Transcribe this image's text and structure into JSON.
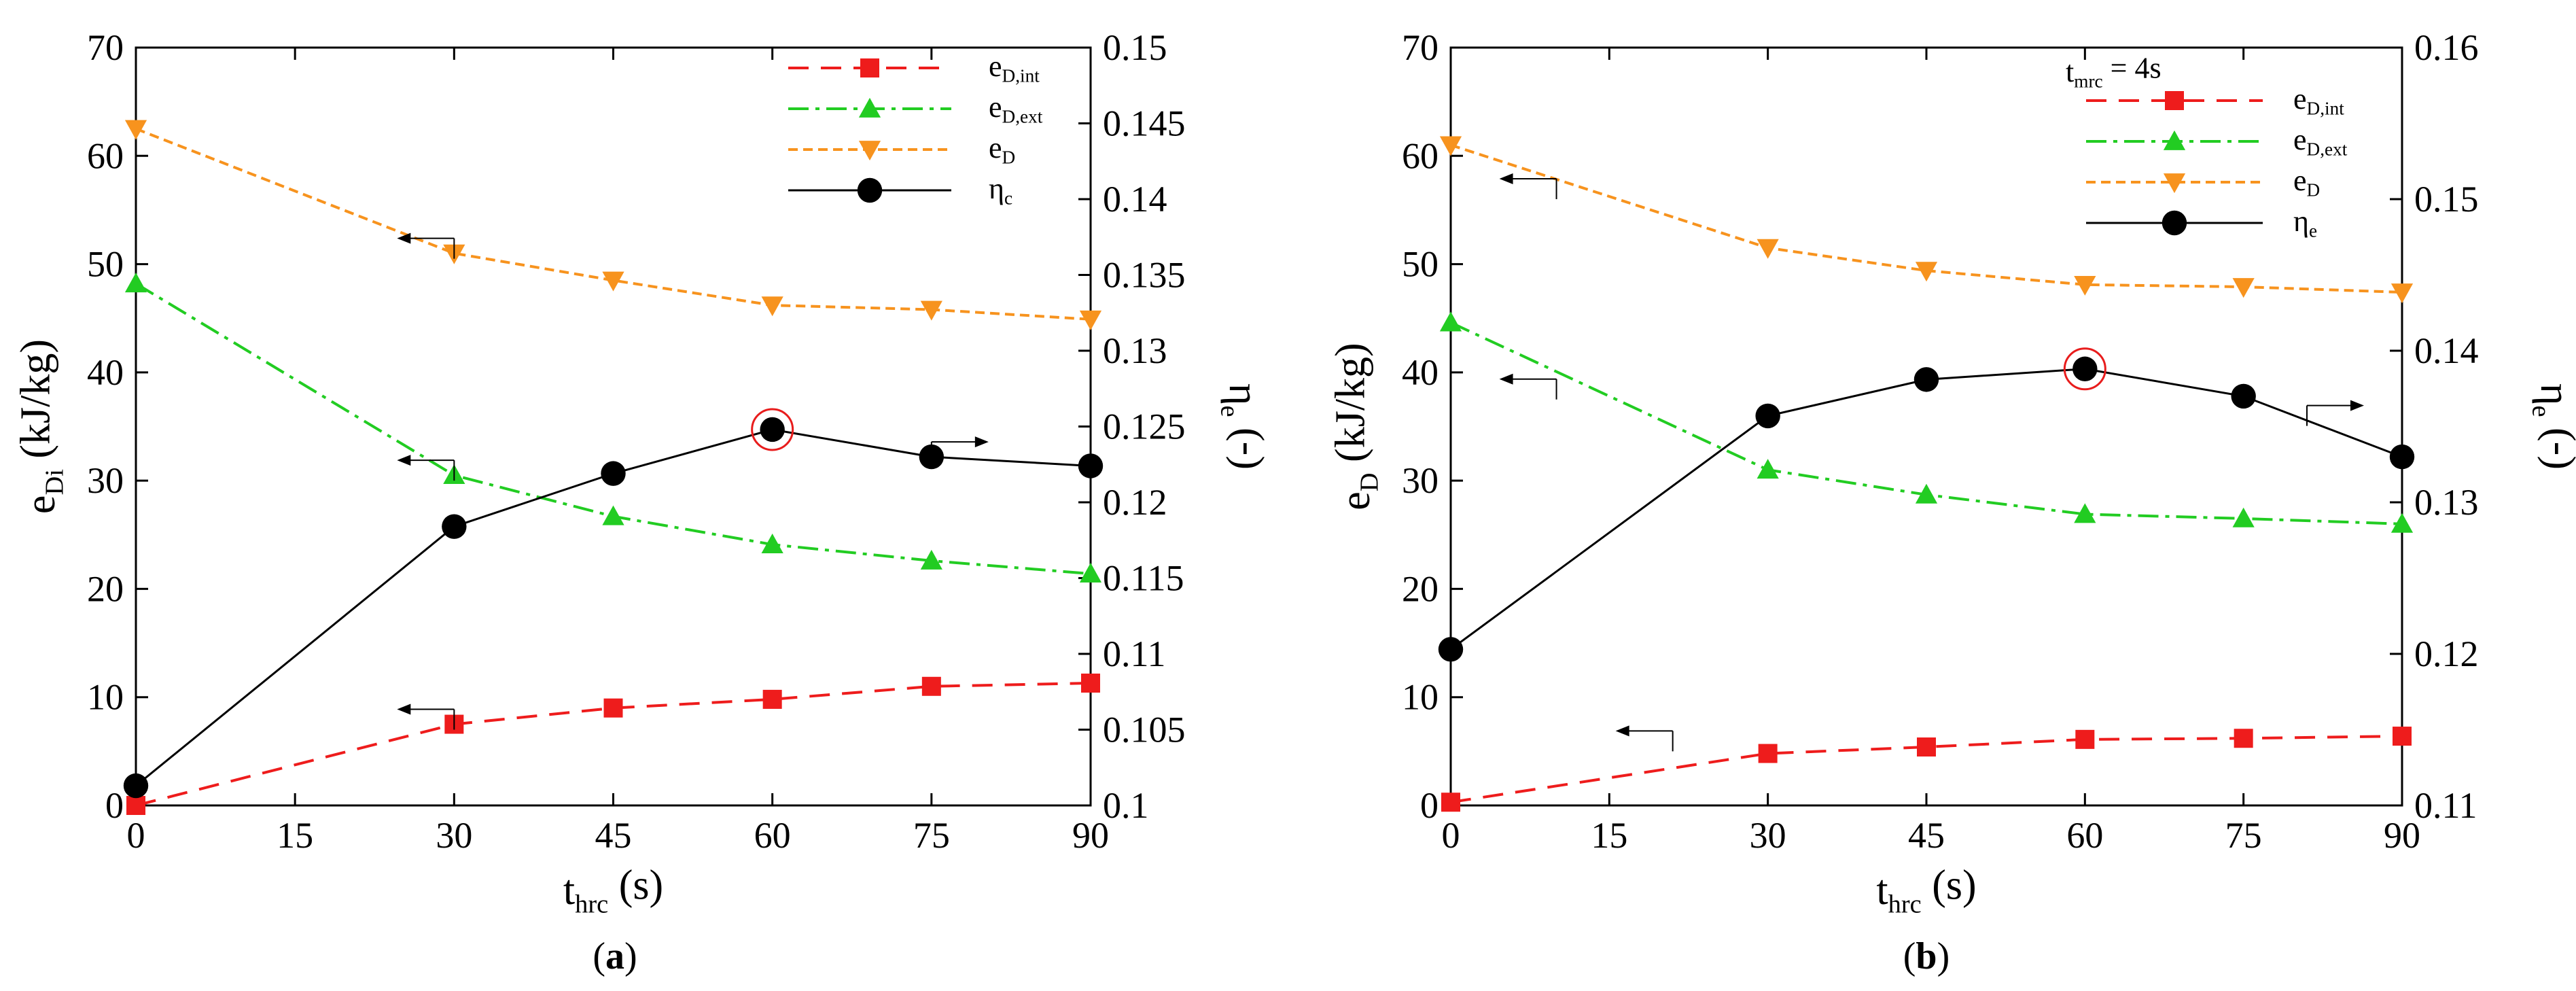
{
  "chart_data": [
    {
      "panel": "a",
      "type": "line",
      "panel_label": "(a)",
      "panel_letter": "a",
      "annotation": "",
      "xlabel": "t",
      "xlabel_sub": "hrc",
      "xlabel_unit": " (s)",
      "ylabel": "e",
      "ylabel_sub": "Di",
      "ylabel_unit": " (kJ/kg)",
      "y2label": "η",
      "y2label_sub": "e",
      "y2label_unit": " (-)",
      "x_ticks": [
        0,
        15,
        30,
        45,
        60,
        75,
        90
      ],
      "xlim": [
        0,
        90
      ],
      "ylim": [
        0,
        70
      ],
      "y_ticks": [
        0,
        10,
        20,
        30,
        40,
        50,
        60,
        70
      ],
      "y2lim": [
        0.1,
        0.15
      ],
      "y2_ticks": [
        "0.1",
        "0.105",
        "0.11",
        "0.115",
        "0.12",
        "0.125",
        "0.13",
        "0.135",
        "0.14",
        "0.145",
        "0.15"
      ],
      "x": [
        0,
        30,
        45,
        60,
        75,
        90
      ],
      "series": [
        {
          "name": "e",
          "sub": "D,int",
          "axis": "left",
          "color": "#ee1c1c",
          "marker": "square",
          "dash": "30,18",
          "values": [
            0,
            7.5,
            9,
            9.8,
            11,
            11.3
          ]
        },
        {
          "name": "e",
          "sub": "D,ext",
          "axis": "left",
          "color": "#22cc22",
          "marker": "triangle-up",
          "dash": "30,10,6,10",
          "values": [
            48.2,
            30.5,
            26.7,
            24.1,
            22.6,
            21.4
          ]
        },
        {
          "name": "e",
          "sub": "D",
          "axis": "left",
          "color": "#f7931e",
          "marker": "triangle-down",
          "dash": "14,8",
          "values": [
            62.5,
            51,
            48.5,
            46.2,
            45.8,
            44.9
          ]
        },
        {
          "name": "η",
          "sub": "c",
          "axis": "right",
          "color": "#000000",
          "marker": "circle",
          "dash": "",
          "values": [
            0.1013,
            0.1184,
            0.1219,
            0.1248,
            0.123,
            0.1224
          ]
        }
      ],
      "highlight": {
        "series": 3,
        "index": 3
      },
      "arrows": [
        {
          "dir": "left",
          "x": 30,
          "y": 51,
          "axis": "left"
        },
        {
          "dir": "left",
          "x": 30,
          "y": 30.5,
          "axis": "left"
        },
        {
          "dir": "left",
          "x": 30,
          "y": 7.5,
          "axis": "left"
        },
        {
          "dir": "right",
          "x": 75,
          "y": 0.123,
          "axis": "right"
        }
      ],
      "legend_position": "top-right"
    },
    {
      "panel": "b",
      "type": "line",
      "panel_label": "(b)",
      "panel_letter": "b",
      "annotation": "t",
      "annotation_sub": "mrc",
      "annotation_rest": " = 4s",
      "xlabel": "t",
      "xlabel_sub": "hrc",
      "xlabel_unit": " (s)",
      "ylabel": "e",
      "ylabel_sub": "D",
      "ylabel_unit": " (kJ/kg)",
      "y2label": "η",
      "y2label_sub": "e",
      "y2label_unit": " (-)",
      "x_ticks": [
        0,
        15,
        30,
        45,
        60,
        75,
        90
      ],
      "xlim": [
        0,
        90
      ],
      "ylim": [
        0,
        70
      ],
      "y_ticks": [
        0,
        10,
        20,
        30,
        40,
        50,
        60,
        70
      ],
      "y2lim": [
        0.11,
        0.16
      ],
      "y2_ticks": [
        "0.11",
        "0.12",
        "0.13",
        "0.14",
        "0.15",
        "0.16"
      ],
      "x": [
        0,
        30,
        45,
        60,
        75,
        90
      ],
      "series": [
        {
          "name": "e",
          "sub": "D,int",
          "axis": "left",
          "color": "#ee1c1c",
          "marker": "square",
          "dash": "30,18",
          "values": [
            0.3,
            4.8,
            5.4,
            6.1,
            6.2,
            6.4
          ]
        },
        {
          "name": "e",
          "sub": "D,ext",
          "axis": "left",
          "color": "#22cc22",
          "marker": "triangle-up",
          "dash": "30,10,6,10",
          "values": [
            44.6,
            31,
            28.7,
            26.9,
            26.5,
            26
          ]
        },
        {
          "name": "e",
          "sub": "D",
          "axis": "left",
          "color": "#f7931e",
          "marker": "triangle-down",
          "dash": "14,8",
          "values": [
            61,
            51.5,
            49.4,
            48.1,
            47.9,
            47.4
          ]
        },
        {
          "name": "η",
          "sub": "e",
          "axis": "right",
          "color": "#000000",
          "marker": "circle",
          "dash": "",
          "values": [
            0.1203,
            0.1357,
            0.1381,
            0.1388,
            0.137,
            0.133
          ]
        }
      ],
      "highlight": {
        "series": 3,
        "index": 3
      },
      "arrows": [
        {
          "dir": "left",
          "x": 10,
          "y": 56.5,
          "axis": "left"
        },
        {
          "dir": "left",
          "x": 10,
          "y": 38,
          "axis": "left"
        },
        {
          "dir": "left",
          "x": 21,
          "y": 5.5,
          "axis": "left"
        },
        {
          "dir": "right",
          "x": 81,
          "y": 0.1354,
          "axis": "right"
        }
      ],
      "legend_position": "top-right"
    }
  ]
}
